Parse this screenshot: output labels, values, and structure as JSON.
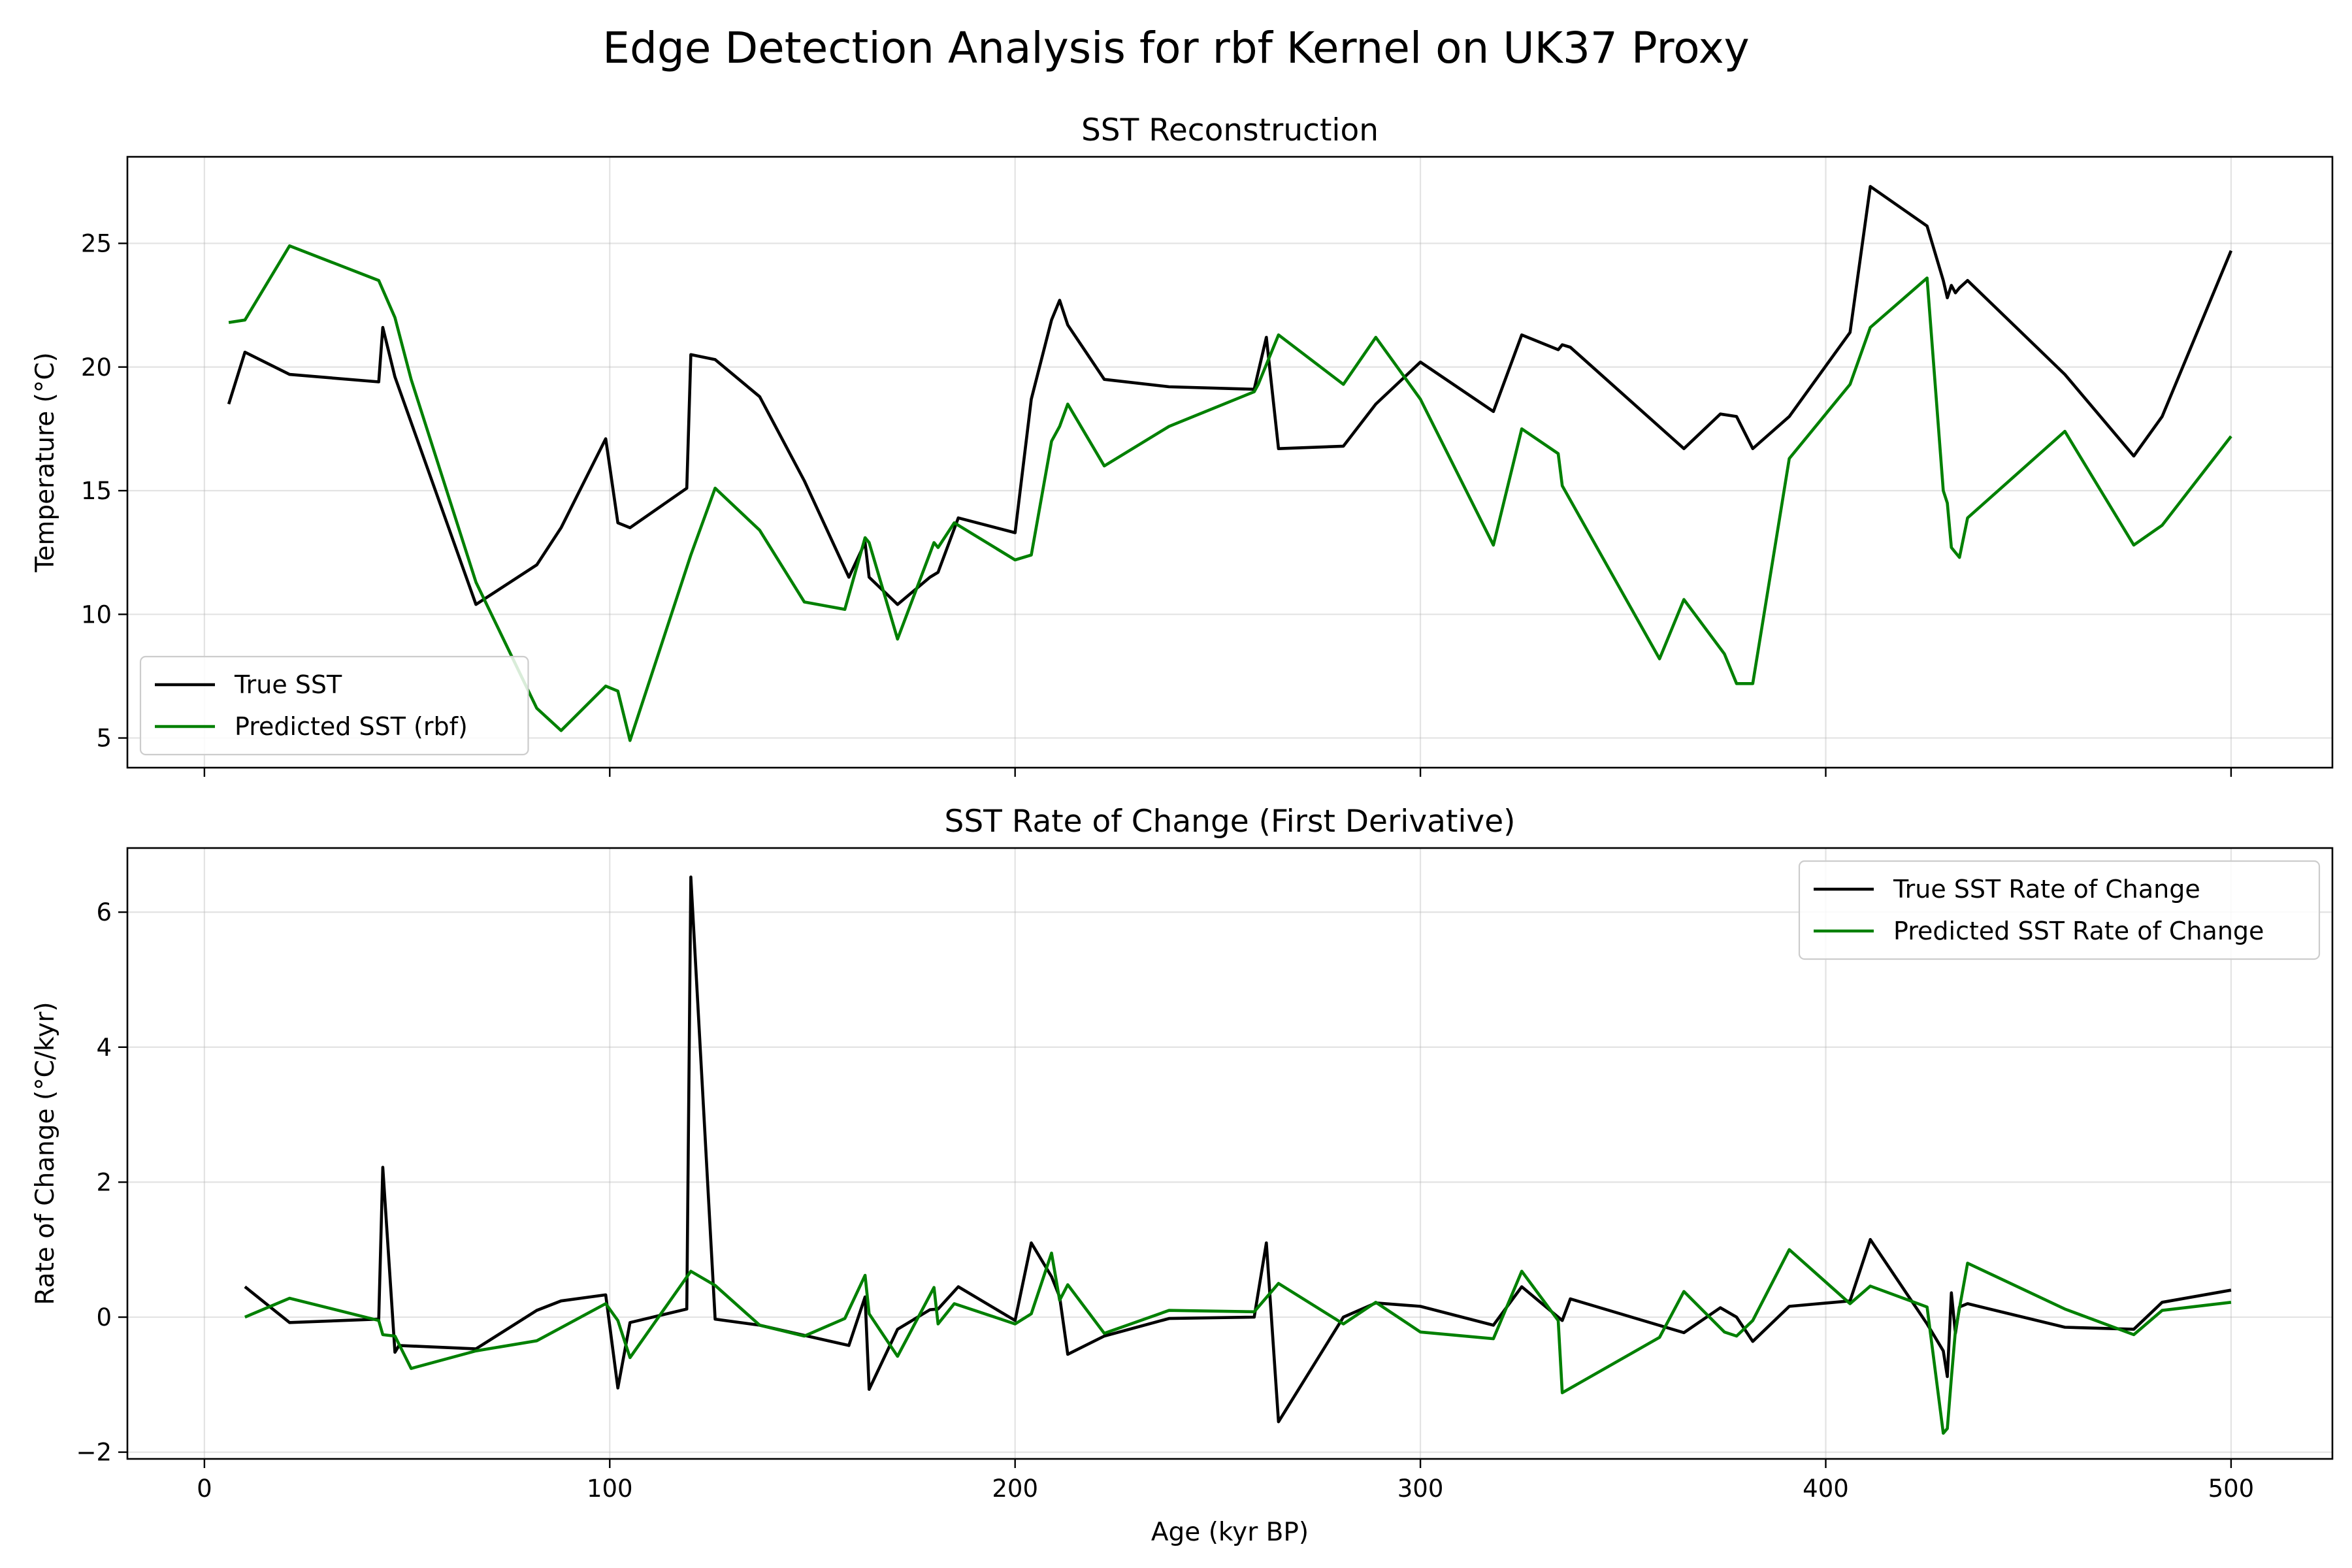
{
  "figure_title": "Edge Detection Analysis for rbf Kernel on UK37 Proxy",
  "colors": {
    "true": "#000000",
    "predicted": "#008000"
  },
  "chart_data": [
    {
      "type": "line",
      "title": "SST Reconstruction",
      "xlabel": "",
      "ylabel": "Temperature (°C)",
      "xlim": [
        -19,
        525
      ],
      "ylim": [
        3.8,
        28.5
      ],
      "xticks": [
        0,
        100,
        200,
        300,
        400,
        500
      ],
      "yticks": [
        5,
        10,
        15,
        20,
        25
      ],
      "grid": true,
      "legend_position": "lower-left",
      "series": [
        {
          "name": "True SST",
          "color": "#000000",
          "points": [
            [
              6,
              18.5
            ],
            [
              10,
              20.6
            ],
            [
              21,
              19.7
            ],
            [
              43,
              19.4
            ],
            [
              44,
              21.6
            ],
            [
              47,
              19.6
            ],
            [
              67,
              10.4
            ],
            [
              82,
              12.0
            ],
            [
              88,
              13.5
            ],
            [
              99,
              17.1
            ],
            [
              102,
              13.7
            ],
            [
              105,
              13.5
            ],
            [
              119,
              15.1
            ],
            [
              120,
              20.5
            ],
            [
              126,
              20.3
            ],
            [
              137,
              18.8
            ],
            [
              148,
              15.4
            ],
            [
              159,
              11.5
            ],
            [
              163,
              12.9
            ],
            [
              164,
              11.5
            ],
            [
              171,
              10.4
            ],
            [
              179,
              11.5
            ],
            [
              181,
              11.7
            ],
            [
              186,
              13.9
            ],
            [
              200,
              13.3
            ],
            [
              204,
              18.7
            ],
            [
              209,
              21.9
            ],
            [
              211,
              22.7
            ],
            [
              213,
              21.7
            ],
            [
              222,
              19.5
            ],
            [
              238,
              19.2
            ],
            [
              259,
              19.1
            ],
            [
              262,
              21.2
            ],
            [
              265,
              16.7
            ],
            [
              281,
              16.8
            ],
            [
              289,
              18.5
            ],
            [
              300,
              20.2
            ],
            [
              318,
              18.2
            ],
            [
              325,
              21.3
            ],
            [
              334,
              20.7
            ],
            [
              335,
              20.9
            ],
            [
              337,
              20.8
            ],
            [
              365,
              16.7
            ],
            [
              374,
              18.1
            ],
            [
              378,
              18.0
            ],
            [
              382,
              16.7
            ],
            [
              391,
              18.0
            ],
            [
              406,
              21.4
            ],
            [
              411,
              27.3
            ],
            [
              425,
              25.7
            ],
            [
              429,
              23.5
            ],
            [
              430,
              22.8
            ],
            [
              431,
              23.3
            ],
            [
              432,
              23.0
            ],
            [
              433,
              23.2
            ],
            [
              435,
              23.5
            ],
            [
              459,
              19.7
            ],
            [
              476,
              16.4
            ],
            [
              483,
              18.0
            ],
            [
              500,
              24.7
            ]
          ]
        },
        {
          "name": "Predicted SST (rbf)",
          "color": "#008000",
          "points": [
            [
              6,
              21.8
            ],
            [
              10,
              21.9
            ],
            [
              21,
              24.9
            ],
            [
              43,
              23.5
            ],
            [
              47,
              22.0
            ],
            [
              51,
              19.5
            ],
            [
              67,
              11.3
            ],
            [
              82,
              6.2
            ],
            [
              88,
              5.3
            ],
            [
              99,
              7.1
            ],
            [
              102,
              6.9
            ],
            [
              105,
              4.9
            ],
            [
              120,
              12.4
            ],
            [
              126,
              15.1
            ],
            [
              137,
              13.4
            ],
            [
              148,
              10.5
            ],
            [
              158,
              10.2
            ],
            [
              163,
              13.1
            ],
            [
              164,
              12.9
            ],
            [
              171,
              9.0
            ],
            [
              180,
              12.9
            ],
            [
              181,
              12.7
            ],
            [
              185,
              13.7
            ],
            [
              200,
              12.2
            ],
            [
              204,
              12.4
            ],
            [
              209,
              17.0
            ],
            [
              211,
              17.6
            ],
            [
              213,
              18.5
            ],
            [
              222,
              16.0
            ],
            [
              238,
              17.6
            ],
            [
              259,
              19.0
            ],
            [
              260,
              19.3
            ],
            [
              265,
              21.3
            ],
            [
              281,
              19.3
            ],
            [
              289,
              21.2
            ],
            [
              300,
              18.7
            ],
            [
              318,
              12.8
            ],
            [
              325,
              17.5
            ],
            [
              334,
              16.5
            ],
            [
              335,
              15.2
            ],
            [
              359,
              8.2
            ],
            [
              365,
              10.6
            ],
            [
              375,
              8.4
            ],
            [
              378,
              7.2
            ],
            [
              382,
              7.2
            ],
            [
              391,
              16.3
            ],
            [
              406,
              19.3
            ],
            [
              411,
              21.6
            ],
            [
              425,
              23.6
            ],
            [
              429,
              15.0
            ],
            [
              430,
              14.5
            ],
            [
              431,
              12.7
            ],
            [
              432,
              12.5
            ],
            [
              433,
              12.3
            ],
            [
              435,
              13.9
            ],
            [
              459,
              17.4
            ],
            [
              476,
              12.8
            ],
            [
              483,
              13.6
            ],
            [
              500,
              17.2
            ]
          ]
        }
      ]
    },
    {
      "type": "line",
      "title": "SST Rate of Change (First Derivative)",
      "xlabel": "Age (kyr BP)",
      "ylabel": "Rate of Change (°C/kyr)",
      "xlim": [
        -19,
        525
      ],
      "ylim": [
        -2.1,
        6.95
      ],
      "xticks": [
        0,
        100,
        200,
        300,
        400,
        500
      ],
      "yticks": [
        -2,
        0,
        2,
        4,
        6
      ],
      "grid": true,
      "legend_position": "upper-right",
      "series": [
        {
          "name": "True SST Rate of Change",
          "color": "#000000",
          "points": [
            [
              10,
              0.45
            ],
            [
              21,
              -0.08
            ],
            [
              43,
              -0.03
            ],
            [
              44,
              2.22
            ],
            [
              47,
              -0.52
            ],
            [
              48,
              -0.42
            ],
            [
              67,
              -0.47
            ],
            [
              82,
              0.1
            ],
            [
              88,
              0.24
            ],
            [
              99,
              0.33
            ],
            [
              102,
              -1.05
            ],
            [
              105,
              -0.08
            ],
            [
              119,
              0.12
            ],
            [
              120,
              6.52
            ],
            [
              126,
              -0.03
            ],
            [
              137,
              -0.12
            ],
            [
              159,
              -0.42
            ],
            [
              163,
              0.3
            ],
            [
              164,
              -1.07
            ],
            [
              171,
              -0.18
            ],
            [
              179,
              0.11
            ],
            [
              181,
              0.12
            ],
            [
              186,
              0.45
            ],
            [
              200,
              -0.05
            ],
            [
              204,
              1.1
            ],
            [
              209,
              0.6
            ],
            [
              211,
              0.3
            ],
            [
              213,
              -0.55
            ],
            [
              222,
              -0.28
            ],
            [
              238,
              -0.02
            ],
            [
              259,
              0.0
            ],
            [
              262,
              1.1
            ],
            [
              265,
              -1.55
            ],
            [
              281,
              0.0
            ],
            [
              289,
              0.21
            ],
            [
              300,
              0.16
            ],
            [
              318,
              -0.12
            ],
            [
              325,
              0.45
            ],
            [
              334,
              0.0
            ],
            [
              335,
              -0.05
            ],
            [
              337,
              0.27
            ],
            [
              365,
              -0.23
            ],
            [
              374,
              0.14
            ],
            [
              378,
              0.0
            ],
            [
              382,
              -0.36
            ],
            [
              391,
              0.16
            ],
            [
              406,
              0.24
            ],
            [
              411,
              1.15
            ],
            [
              425,
              -0.1
            ],
            [
              429,
              -0.5
            ],
            [
              430,
              -0.88
            ],
            [
              431,
              0.36
            ],
            [
              432,
              -0.24
            ],
            [
              433,
              0.15
            ],
            [
              435,
              0.2
            ],
            [
              459,
              -0.15
            ],
            [
              476,
              -0.18
            ],
            [
              483,
              0.22
            ],
            [
              500,
              0.4
            ]
          ]
        },
        {
          "name": "Predicted SST Rate of Change",
          "color": "#008000",
          "points": [
            [
              10,
              0.0
            ],
            [
              21,
              0.28
            ],
            [
              43,
              -0.05
            ],
            [
              44,
              -0.26
            ],
            [
              47,
              -0.28
            ],
            [
              51,
              -0.76
            ],
            [
              67,
              -0.5
            ],
            [
              82,
              -0.35
            ],
            [
              99,
              0.2
            ],
            [
              102,
              -0.05
            ],
            [
              105,
              -0.6
            ],
            [
              120,
              0.68
            ],
            [
              126,
              0.47
            ],
            [
              137,
              -0.12
            ],
            [
              148,
              -0.28
            ],
            [
              158,
              -0.02
            ],
            [
              163,
              0.62
            ],
            [
              164,
              0.05
            ],
            [
              171,
              -0.58
            ],
            [
              180,
              0.44
            ],
            [
              181,
              -0.1
            ],
            [
              185,
              0.2
            ],
            [
              200,
              -0.1
            ],
            [
              204,
              0.05
            ],
            [
              209,
              0.95
            ],
            [
              211,
              0.25
            ],
            [
              213,
              0.48
            ],
            [
              222,
              -0.24
            ],
            [
              238,
              0.1
            ],
            [
              259,
              0.08
            ],
            [
              265,
              0.5
            ],
            [
              281,
              -0.1
            ],
            [
              289,
              0.22
            ],
            [
              300,
              -0.22
            ],
            [
              318,
              -0.32
            ],
            [
              325,
              0.68
            ],
            [
              334,
              -0.05
            ],
            [
              335,
              -1.12
            ],
            [
              359,
              -0.3
            ],
            [
              365,
              0.38
            ],
            [
              375,
              -0.22
            ],
            [
              378,
              -0.28
            ],
            [
              382,
              -0.05
            ],
            [
              391,
              1.0
            ],
            [
              406,
              0.2
            ],
            [
              411,
              0.46
            ],
            [
              425,
              0.15
            ],
            [
              429,
              -1.72
            ],
            [
              430,
              -1.65
            ],
            [
              431,
              -0.9
            ],
            [
              432,
              -0.2
            ],
            [
              435,
              0.8
            ],
            [
              459,
              0.12
            ],
            [
              476,
              -0.26
            ],
            [
              483,
              0.1
            ],
            [
              500,
              0.22
            ]
          ]
        }
      ]
    }
  ]
}
